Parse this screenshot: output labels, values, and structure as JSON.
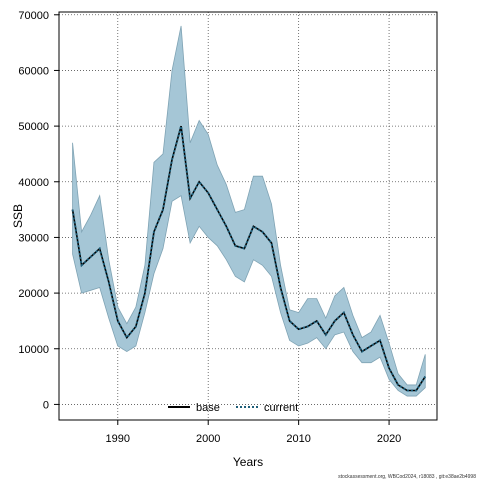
{
  "chart_data": {
    "type": "line",
    "title": "",
    "xlabel": "Years",
    "ylabel": "SSB",
    "xlim": [
      1983.5,
      2025.3
    ],
    "ylim": [
      -2800,
      70500
    ],
    "xticks": [
      1990,
      2000,
      2010,
      2020
    ],
    "xtick_labels": [
      "1990",
      "2000",
      "2010",
      "2020"
    ],
    "yticks": [
      0,
      10000,
      20000,
      30000,
      40000,
      50000,
      60000,
      70000
    ],
    "ytick_labels": [
      "0",
      "10000",
      "20000",
      "30000",
      "40000",
      "50000",
      "60000",
      "70000"
    ],
    "grid": true,
    "legend_position": "bottom-center",
    "legend": [
      {
        "name": "base",
        "style": "solid",
        "color": "#000000"
      },
      {
        "name": "current",
        "style": "dotted",
        "color": "#1f5f7a"
      }
    ],
    "band_color": "#a5c6d6",
    "band_edge_color": "#7fa3b4",
    "x": [
      1985,
      1986,
      1987,
      1988,
      1989,
      1990,
      1991,
      1992,
      1993,
      1994,
      1995,
      1996,
      1997,
      1998,
      1999,
      2000,
      2001,
      2002,
      2003,
      2004,
      2005,
      2006,
      2007,
      2008,
      2009,
      2010,
      2011,
      2012,
      2013,
      2014,
      2015,
      2016,
      2017,
      2018,
      2019,
      2020,
      2021,
      2022,
      2023,
      2024
    ],
    "series": [
      {
        "name": "base",
        "values": [
          35000,
          25000,
          26500,
          28000,
          22000,
          15000,
          12000,
          14000,
          20000,
          31000,
          35000,
          44000,
          50000,
          37000,
          40000,
          38000,
          35000,
          32000,
          28500,
          28000,
          32000,
          31000,
          29000,
          21000,
          15000,
          13500,
          14000,
          15000,
          12500,
          15000,
          16500,
          12500,
          9500,
          10500,
          11500,
          6500,
          3500,
          2500,
          2500,
          5000
        ]
      },
      {
        "name": "current",
        "values": [
          35000,
          25000,
          26500,
          28000,
          22000,
          15000,
          12000,
          14000,
          20000,
          31000,
          35000,
          44000,
          50000,
          37000,
          40000,
          38000,
          35000,
          32000,
          28500,
          28000,
          32000,
          31000,
          29000,
          21000,
          15000,
          13500,
          14000,
          15000,
          12500,
          15000,
          16500,
          12500,
          9500,
          10500,
          11500,
          6500,
          3500,
          2500,
          2500,
          5000
        ]
      }
    ],
    "band_upper": [
      47000,
      31000,
      34000,
      37500,
      26000,
      17500,
      14500,
      17500,
      25000,
      43500,
      45000,
      60000,
      68000,
      47000,
      51000,
      48500,
      43000,
      39500,
      34500,
      35000,
      41000,
      41000,
      36000,
      25000,
      17000,
      16500,
      19000,
      19000,
      15500,
      19500,
      21000,
      16000,
      12000,
      13000,
      16000,
      11000,
      5500,
      3500,
      3500,
      9000
    ],
    "band_lower": [
      27000,
      20000,
      20500,
      21000,
      15500,
      10500,
      9500,
      10500,
      16500,
      23500,
      28000,
      36500,
      37500,
      29000,
      32000,
      30000,
      28500,
      26000,
      23000,
      22000,
      26000,
      25000,
      23000,
      16500,
      11500,
      10500,
      11000,
      12000,
      10000,
      12500,
      13000,
      9500,
      7500,
      7500,
      8500,
      4500,
      2500,
      1500,
      1500,
      3000
    ]
  },
  "footer": "stockassessment.org, WBCod2024, r18083 , git:e38ae2b4998"
}
